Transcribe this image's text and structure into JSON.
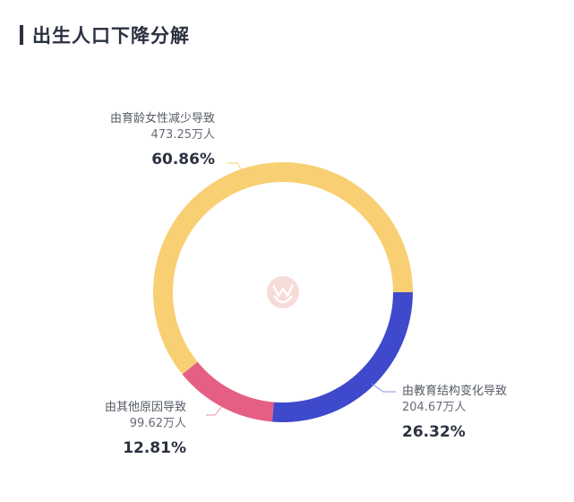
{
  "header": {
    "title": "出生人口下降分解"
  },
  "chart_data": {
    "type": "pie",
    "subtype": "donut",
    "title": "出生人口下降分解",
    "unit": "万人",
    "series": [
      {
        "name": "由教育结构变化导致",
        "value": 204.67,
        "value_label": "204.67万人",
        "percent": 26.32,
        "percent_label": "26.32%",
        "color": "#3f49cc"
      },
      {
        "name": "由其他原因导致",
        "value": 99.62,
        "value_label": "99.62万人",
        "percent": 12.81,
        "percent_label": "12.81%",
        "color": "#e55f84"
      },
      {
        "name": "由育龄女性减少导致",
        "value": 473.25,
        "value_label": "473.25万人",
        "percent": 60.86,
        "percent_label": "60.86%",
        "color": "#f8cf72"
      }
    ],
    "start_angle_deg": 0,
    "direction": "clockwise",
    "legend": "none",
    "labels": "outside with leader lines"
  },
  "labels": {
    "women": {
      "name": "由育龄女性减少导致",
      "value": "473.25万人",
      "pct": "60.86%"
    },
    "edu": {
      "name": "由教育结构变化导致",
      "value": "204.67万人",
      "pct": "26.32%"
    },
    "other": {
      "name": "由其他原因导致",
      "value": "99.62万人",
      "pct": "12.81%"
    }
  },
  "watermark": {
    "icon": "brand-logo-icon",
    "color": "#f2c9c4"
  }
}
